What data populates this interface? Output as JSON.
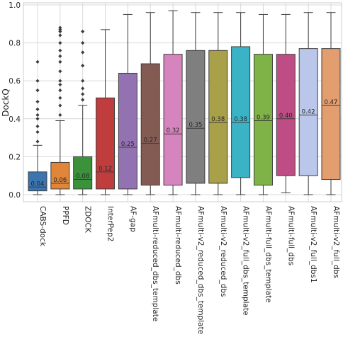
{
  "chart_data": {
    "type": "box",
    "ylabel": "DockQ",
    "xlabel": "",
    "ylim": [
      -0.02,
      1.0
    ],
    "yticks": [
      "0.0",
      "0.2",
      "0.4",
      "0.6",
      "0.8",
      "1.0"
    ],
    "grid": true,
    "series": [
      {
        "name": "CABS-dock",
        "color": "#3a75b0",
        "min": 0.0,
        "q1": 0.02,
        "median": 0.04,
        "q3": 0.12,
        "max": 0.26,
        "median_label": "0.04",
        "fliers": [
          0.28,
          0.33,
          0.36,
          0.4,
          0.42,
          0.45,
          0.49,
          0.55,
          0.6,
          0.7
        ]
      },
      {
        "name": "PPFD",
        "color": "#e18538",
        "min": 0.0,
        "q1": 0.03,
        "median": 0.06,
        "q3": 0.17,
        "max": 0.39,
        "median_label": "0.06",
        "fliers": [
          0.42,
          0.47,
          0.51,
          0.55,
          0.58,
          0.6,
          0.65,
          0.7,
          0.73,
          0.76,
          0.8,
          0.84,
          0.86,
          0.87,
          0.88
        ]
      },
      {
        "name": "ZDOCK",
        "color": "#3a923a",
        "min": 0.0,
        "q1": 0.03,
        "median": 0.08,
        "q3": 0.2,
        "max": 0.47,
        "median_label": "0.08",
        "fliers": [
          0.5,
          0.53,
          0.56,
          0.6,
          0.68,
          0.75,
          0.8,
          0.86
        ]
      },
      {
        "name": "InterPep2",
        "color": "#c03d3e",
        "min": 0.0,
        "q1": 0.03,
        "median": 0.12,
        "q3": 0.51,
        "max": 0.87,
        "median_label": "0.12",
        "fliers": []
      },
      {
        "name": "AF-gap",
        "color": "#9372b2",
        "min": 0.0,
        "q1": 0.03,
        "median": 0.25,
        "q3": 0.64,
        "max": 0.95,
        "median_label": "0.25",
        "fliers": []
      },
      {
        "name": "AFmulti-reduced_dbs_template",
        "color": "#845b53",
        "min": 0.0,
        "q1": 0.05,
        "median": 0.27,
        "q3": 0.69,
        "max": 0.96,
        "median_label": "0.27",
        "fliers": []
      },
      {
        "name": "AFmulti-reduced_dbs",
        "color": "#d684bd",
        "min": 0.0,
        "q1": 0.05,
        "median": 0.32,
        "q3": 0.74,
        "max": 0.97,
        "median_label": "0.32",
        "fliers": []
      },
      {
        "name": "AFmulti-v2_reduced_dbs_template",
        "color": "#7f7f7f",
        "min": 0.0,
        "q1": 0.06,
        "median": 0.35,
        "q3": 0.76,
        "max": 0.96,
        "median_label": "0.35",
        "fliers": []
      },
      {
        "name": "AFmulti-v2_reduced_dbs",
        "color": "#a9a04a",
        "min": 0.0,
        "q1": 0.06,
        "median": 0.38,
        "q3": 0.76,
        "max": 0.96,
        "median_label": "0.38",
        "fliers": []
      },
      {
        "name": "AFmulti-v2_full_dbs_template",
        "color": "#3bb3c6",
        "min": 0.0,
        "q1": 0.09,
        "median": 0.38,
        "q3": 0.78,
        "max": 0.96,
        "median_label": "0.38",
        "fliers": []
      },
      {
        "name": "AFmulti-full_dbs_template",
        "color": "#7fb347",
        "min": 0.0,
        "q1": 0.05,
        "median": 0.39,
        "q3": 0.74,
        "max": 0.95,
        "median_label": "0.39",
        "fliers": []
      },
      {
        "name": "AFmulti-full_dbs",
        "color": "#bf4d85",
        "min": 0.01,
        "q1": 0.1,
        "median": 0.4,
        "q3": 0.74,
        "max": 0.95,
        "median_label": "0.40",
        "fliers": []
      },
      {
        "name": "AFmulti-v2_full_dbs1",
        "color": "#bac6ea",
        "min": 0.0,
        "q1": 0.1,
        "median": 0.42,
        "q3": 0.77,
        "max": 0.96,
        "median_label": "0.42",
        "fliers": []
      },
      {
        "name": "AFmulti-v2_full_dbs",
        "color": "#e39e6f",
        "min": 0.0,
        "q1": 0.08,
        "median": 0.47,
        "q3": 0.77,
        "max": 0.96,
        "median_label": "0.47",
        "fliers": []
      }
    ]
  }
}
